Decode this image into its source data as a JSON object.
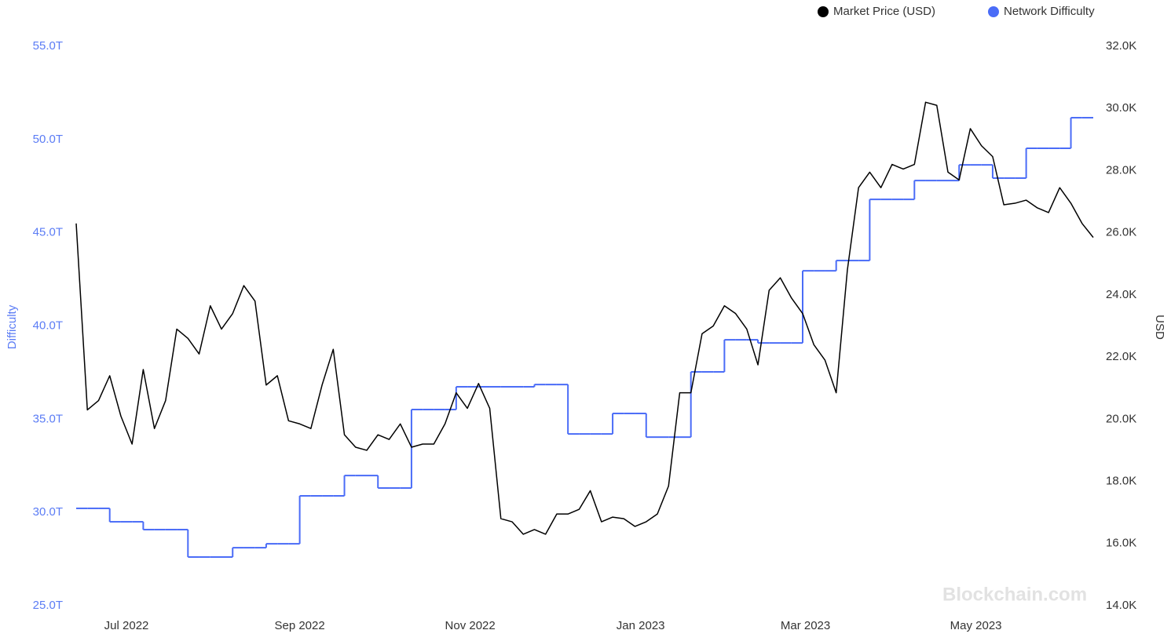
{
  "chart_data": {
    "type": "line",
    "watermark": "Blockchain.com",
    "y_label": "Difficulty",
    "y2_label": "USD",
    "step": "after",
    "legend": "top-right",
    "x": [
      0,
      4,
      8,
      12,
      16,
      20,
      24,
      28,
      32,
      36,
      40,
      44,
      48,
      52,
      56,
      60,
      64,
      68,
      72,
      76,
      80,
      84,
      88,
      92,
      96,
      100,
      104,
      108,
      112,
      116,
      120,
      124,
      128,
      132,
      136,
      140,
      144,
      148,
      152,
      156,
      160,
      164,
      168,
      172,
      176,
      180,
      184,
      188,
      192,
      196,
      200,
      204,
      208,
      212,
      216,
      220,
      224,
      228,
      232,
      236,
      240,
      244,
      248,
      252,
      256,
      260,
      264,
      268,
      272,
      276,
      280,
      284,
      288,
      292,
      296,
      300,
      304,
      308,
      312,
      316,
      320,
      324,
      328,
      332,
      336,
      340,
      344,
      348,
      352,
      356,
      360,
      364
    ],
    "xlim": [
      0,
      364
    ],
    "xticks": [
      {
        "value": 18,
        "label": "Jul 2022"
      },
      {
        "value": 80,
        "label": "Sep 2022"
      },
      {
        "value": 141,
        "label": "Nov 2022"
      },
      {
        "value": 202,
        "label": "Jan 2023"
      },
      {
        "value": 261,
        "label": "Mar 2023"
      },
      {
        "value": 322,
        "label": "May 2023"
      }
    ],
    "ylim": [
      25,
      55
    ],
    "yticks": [
      {
        "value": 25,
        "label": "25.0T"
      },
      {
        "value": 30,
        "label": "30.0T"
      },
      {
        "value": 35,
        "label": "35.0T"
      },
      {
        "value": 40,
        "label": "40.0T"
      },
      {
        "value": 45,
        "label": "45.0T"
      },
      {
        "value": 50,
        "label": "50.0T"
      },
      {
        "value": 55,
        "label": "55.0T"
      }
    ],
    "y2lim": [
      14000,
      32000
    ],
    "y2ticks": [
      {
        "value": 14000,
        "label": "14.0K"
      },
      {
        "value": 16000,
        "label": "16.0K"
      },
      {
        "value": 18000,
        "label": "18.0K"
      },
      {
        "value": 20000,
        "label": "20.0K"
      },
      {
        "value": 22000,
        "label": "22.0K"
      },
      {
        "value": 24000,
        "label": "24.0K"
      },
      {
        "value": 26000,
        "label": "26.0K"
      },
      {
        "value": 28000,
        "label": "28.0K"
      },
      {
        "value": 30000,
        "label": "30.0K"
      },
      {
        "value": 32000,
        "label": "32.0K"
      }
    ],
    "series": [
      {
        "name": "Market Price (USD)",
        "color": "#000000",
        "axis": "y2",
        "values": [
          26300,
          20300,
          20600,
          21400,
          20100,
          19200,
          21600,
          19700,
          20600,
          22900,
          22600,
          22100,
          23650,
          22900,
          23400,
          24300,
          23800,
          21100,
          21400,
          19950,
          19850,
          19700,
          21100,
          22250,
          19500,
          19100,
          19000,
          19500,
          19350,
          19850,
          19100,
          19200,
          19200,
          19850,
          20850,
          20350,
          21150,
          20350,
          16800,
          16700,
          16300,
          16450,
          16300,
          16950,
          16950,
          17100,
          17700,
          16700,
          16850,
          16800,
          16550,
          16700,
          16950,
          17850,
          20850,
          20850,
          22750,
          23000,
          23650,
          23400,
          22900,
          21750,
          24150,
          24550,
          23900,
          23400,
          22400,
          21900,
          20850,
          24800,
          27450,
          27950,
          27450,
          28200,
          28050,
          28200,
          30200,
          30100,
          27950,
          27700,
          29350,
          28800,
          28450,
          26900,
          26950,
          27050,
          26800,
          26650,
          27450,
          26950,
          26300,
          25850
        ]
      },
      {
        "name": "Network Difficulty",
        "color": "#4a6cf7",
        "axis": "y",
        "values": [
          30.22,
          30.22,
          30.22,
          29.5,
          29.5,
          29.5,
          29.08,
          29.08,
          29.08,
          29.08,
          27.61,
          27.61,
          27.61,
          27.61,
          28.11,
          28.11,
          28.11,
          28.32,
          28.32,
          28.32,
          30.89,
          30.89,
          30.89,
          30.89,
          31.98,
          31.98,
          31.98,
          31.31,
          31.31,
          31.31,
          35.52,
          35.52,
          35.52,
          35.52,
          36.74,
          36.74,
          36.74,
          36.74,
          36.74,
          36.74,
          36.74,
          36.86,
          36.86,
          36.86,
          34.21,
          34.21,
          34.21,
          34.21,
          35.31,
          35.31,
          35.31,
          34.04,
          34.04,
          34.04,
          34.04,
          37.54,
          37.54,
          37.54,
          39.26,
          39.26,
          39.26,
          39.09,
          39.09,
          39.09,
          39.09,
          42.96,
          42.96,
          42.96,
          43.51,
          43.51,
          43.51,
          46.79,
          46.79,
          46.79,
          46.79,
          47.8,
          47.8,
          47.8,
          47.8,
          48.64,
          48.64,
          48.64,
          47.93,
          47.93,
          47.93,
          49.53,
          49.53,
          49.53,
          49.53,
          51.17,
          51.17,
          51.17
        ]
      }
    ]
  }
}
